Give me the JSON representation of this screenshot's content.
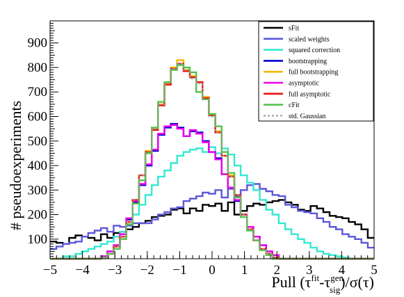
{
  "chart_data": {
    "type": "step-histogram",
    "xlabel": "Pull (τ^fit-τ^gen_sig)/σ(τ)",
    "xlabel_parts": {
      "pre": "Pull (τ",
      "sup1": "fit",
      "mid": "-τ",
      "sub": "sig",
      "sup2": "gen",
      "post": ")/σ(τ)"
    },
    "ylabel": "# pseudoexperiments",
    "xlim": [
      -5,
      5
    ],
    "ylim": [
      20,
      990
    ],
    "bin_width": 0.2,
    "x_ticks": [
      -5,
      -4,
      -3,
      -2,
      -1,
      0,
      1,
      2,
      3,
      4,
      5
    ],
    "y_ticks": [
      100,
      200,
      300,
      400,
      500,
      600,
      700,
      800,
      900
    ],
    "x_tick_labels": [
      "−5",
      "−4",
      "−3",
      "−2",
      "−1",
      "0",
      "1",
      "2",
      "3",
      "4",
      "5"
    ],
    "y_tick_labels": [
      "100",
      "200",
      "300",
      "400",
      "500",
      "600",
      "700",
      "800",
      "900"
    ],
    "legend_position": "top-right",
    "series": [
      {
        "name": "sFit",
        "color": "#000000",
        "values": [
          90,
          85,
          80,
          105,
          115,
          110,
          105,
          95,
          120,
          105,
          125,
          130,
          140,
          150,
          165,
          175,
          190,
          195,
          200,
          220,
          225,
          205,
          225,
          215,
          240,
          235,
          245,
          215,
          250,
          200,
          215,
          235,
          245,
          240,
          250,
          255,
          260,
          250,
          240,
          220,
          215,
          235,
          225,
          210,
          195,
          190,
          185,
          170,
          160,
          140,
          105
        ]
      },
      {
        "name": "scaled weights",
        "color": "#5b57d9",
        "values": [
          60,
          70,
          80,
          85,
          90,
          110,
          125,
          135,
          145,
          130,
          155,
          150,
          155,
          165,
          165,
          165,
          180,
          200,
          210,
          225,
          230,
          255,
          265,
          275,
          290,
          285,
          300,
          270,
          305,
          275,
          300,
          320,
          325,
          305,
          295,
          280,
          275,
          240,
          230,
          215,
          210,
          205,
          185,
          170,
          150,
          140,
          120,
          110,
          100,
          85,
          65
        ]
      },
      {
        "name": "squared correction",
        "color": "#33e8d0",
        "values": [
          20,
          20,
          30,
          30,
          40,
          50,
          60,
          70,
          80,
          90,
          110,
          130,
          160,
          200,
          240,
          280,
          320,
          355,
          380,
          410,
          440,
          455,
          465,
          470,
          455,
          475,
          450,
          470,
          445,
          400,
          360,
          330,
          300,
          260,
          220,
          200,
          165,
          140,
          120,
          100,
          85,
          65,
          50,
          40,
          35,
          30,
          25,
          20,
          20,
          20,
          20
        ]
      },
      {
        "name": "bootstrapping",
        "color": "#0000cc",
        "values": [
          10,
          10,
          10,
          10,
          10,
          12,
          15,
          20,
          30,
          50,
          75,
          120,
          180,
          250,
          320,
          400,
          460,
          525,
          555,
          570,
          555,
          520,
          540,
          535,
          500,
          455,
          430,
          365,
          310,
          255,
          200,
          150,
          110,
          75,
          50,
          35,
          20,
          15,
          12,
          10,
          10,
          10,
          10,
          10,
          10,
          10,
          10,
          10,
          10,
          10,
          10
        ]
      },
      {
        "name": "full bootstrapping",
        "color": "#f5b800",
        "values": [
          10,
          10,
          10,
          10,
          10,
          10,
          12,
          15,
          25,
          40,
          70,
          110,
          170,
          260,
          360,
          460,
          550,
          650,
          735,
          800,
          830,
          790,
          765,
          740,
          680,
          610,
          540,
          440,
          360,
          280,
          200,
          140,
          95,
          60,
          40,
          25,
          15,
          10,
          10,
          10,
          10,
          10,
          10,
          10,
          10,
          10,
          10,
          10,
          10,
          10,
          10
        ]
      },
      {
        "name": "asymptotic",
        "color": "#ee00ee",
        "values": [
          10,
          10,
          10,
          10,
          10,
          12,
          15,
          20,
          30,
          50,
          75,
          120,
          185,
          255,
          325,
          405,
          465,
          530,
          560,
          565,
          550,
          520,
          545,
          530,
          495,
          455,
          425,
          365,
          310,
          260,
          200,
          150,
          110,
          75,
          50,
          35,
          20,
          15,
          12,
          10,
          10,
          10,
          10,
          10,
          10,
          10,
          10,
          10,
          10,
          10,
          10
        ]
      },
      {
        "name": "full asymptotic",
        "color": "#ee1111",
        "values": [
          10,
          10,
          10,
          10,
          10,
          10,
          12,
          15,
          25,
          40,
          70,
          110,
          170,
          260,
          360,
          455,
          545,
          645,
          730,
          795,
          815,
          785,
          760,
          740,
          675,
          605,
          535,
          440,
          355,
          280,
          200,
          140,
          95,
          60,
          40,
          25,
          15,
          10,
          10,
          10,
          10,
          10,
          10,
          10,
          10,
          10,
          10,
          10,
          10,
          10,
          10
        ]
      },
      {
        "name": "cFit",
        "color": "#55c24a",
        "values": [
          10,
          10,
          10,
          10,
          10,
          10,
          12,
          15,
          25,
          40,
          60,
          100,
          160,
          245,
          340,
          450,
          555,
          660,
          740,
          790,
          810,
          800,
          780,
          700,
          670,
          610,
          560,
          455,
          370,
          270,
          190,
          135,
          95,
          55,
          35,
          20,
          12,
          10,
          10,
          10,
          10,
          10,
          10,
          10,
          10,
          10,
          10,
          10,
          10,
          10,
          10
        ]
      },
      {
        "name": "std. Gaussian",
        "color": "#999999",
        "dashed": true,
        "values": [
          10,
          10,
          10,
          10,
          10,
          10,
          12,
          15,
          25,
          40,
          70,
          110,
          170,
          260,
          360,
          455,
          550,
          650,
          735,
          795,
          815,
          790,
          755,
          735,
          670,
          600,
          535,
          440,
          355,
          280,
          200,
          140,
          95,
          60,
          40,
          25,
          15,
          10,
          10,
          10,
          10,
          10,
          10,
          10,
          10,
          10,
          10,
          10,
          10,
          10,
          10
        ]
      }
    ]
  }
}
